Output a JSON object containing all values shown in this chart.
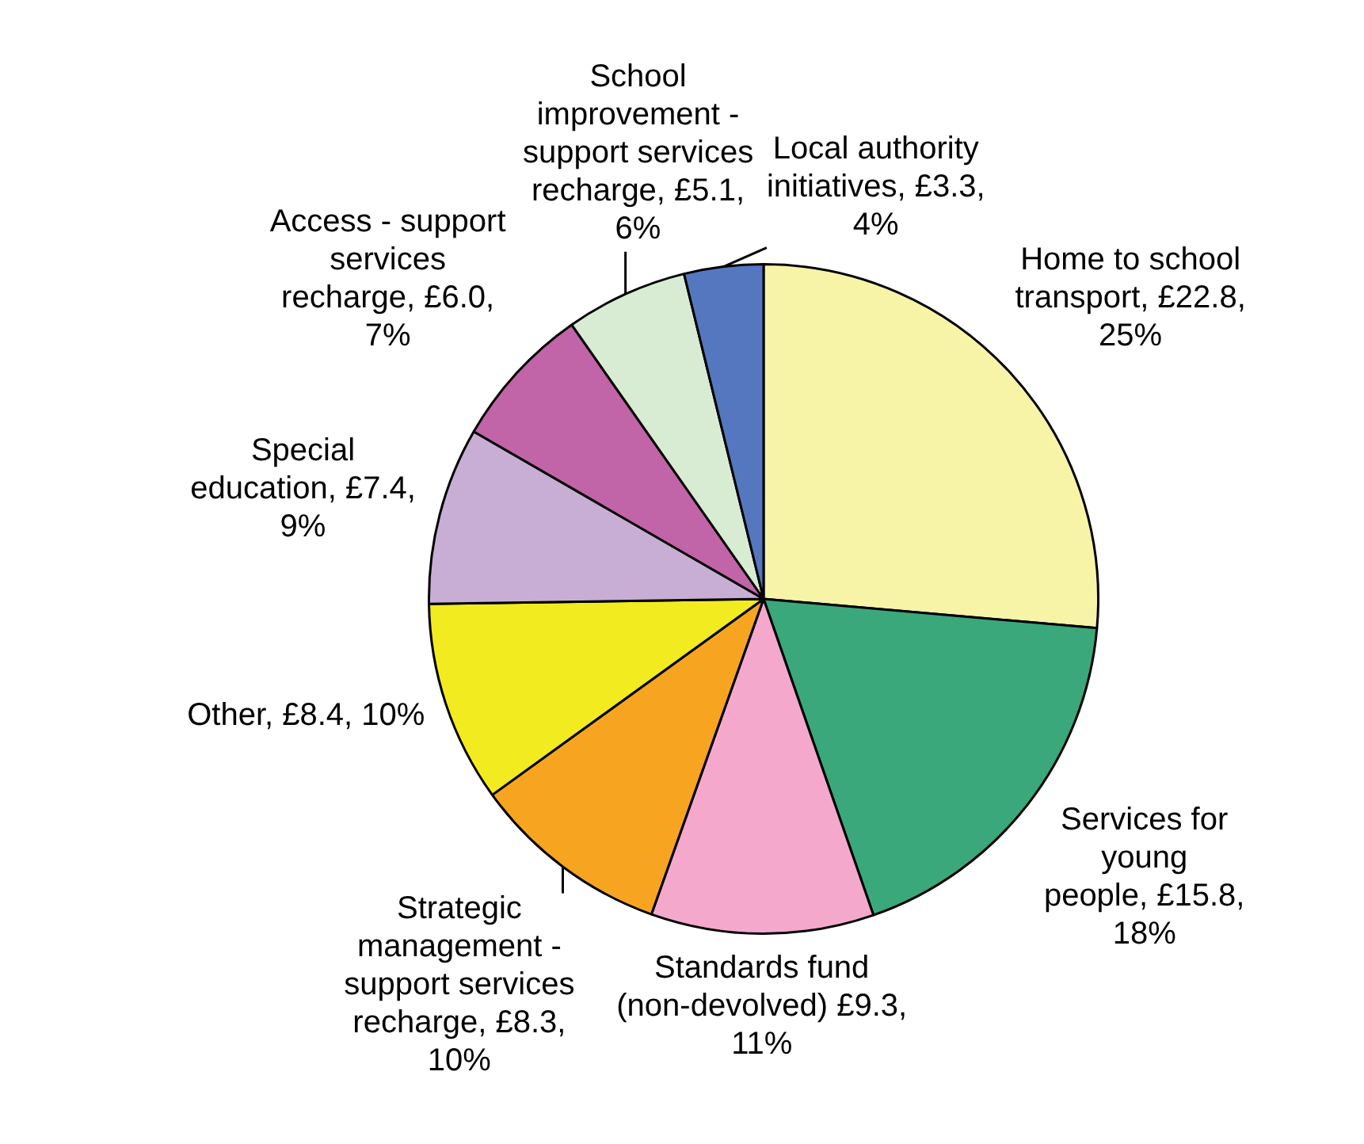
{
  "chart_data": {
    "type": "pie",
    "categories": [
      "Home to school transport",
      "Services for young people",
      "Standards fund (non-devolved)",
      "Strategic management - support services recharge",
      "Other",
      "Special education",
      "Access - support services recharge",
      "School improvement - support services recharge",
      "Local authority initiatives"
    ],
    "values": [
      22.8,
      15.8,
      9.3,
      8.3,
      8.4,
      7.4,
      6.0,
      5.1,
      3.3
    ],
    "value_labels": [
      "£22.8, 25%",
      "£15.8, 18%",
      "£9.3, 11%",
      "£8.3, 10%",
      "£8.4, 10%",
      "£7.4, 9%",
      "£6.0, 7%",
      "£5.1, 6%",
      "£3.3, 4%"
    ],
    "colors": [
      "#f7f4a8",
      "#3aa87a",
      "#f4a9cc",
      "#f7a520",
      "#f2eb1f",
      "#c8aed4",
      "#c264a8",
      "#d8ecd4",
      "#5577c0"
    ],
    "legend": false
  }
}
